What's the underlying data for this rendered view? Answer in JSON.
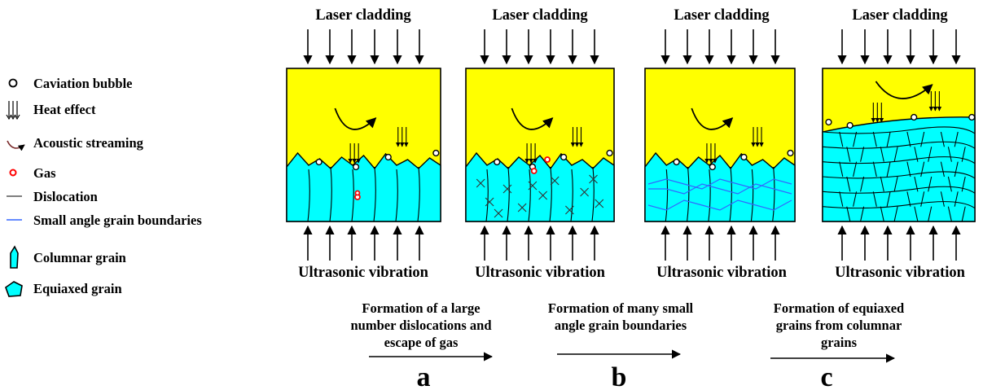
{
  "legend": [
    {
      "key": "bubble",
      "label": "Caviation bubble"
    },
    {
      "key": "heat",
      "label": "Heat effect"
    },
    {
      "key": "stream",
      "label": "Acoustic streaming"
    },
    {
      "key": "gas",
      "label": "Gas"
    },
    {
      "key": "dislocation",
      "label": "Dislocation"
    },
    {
      "key": "sagb",
      "label": "Small angle grain boundaries"
    },
    {
      "key": "columnar",
      "label": "Columnar grain"
    },
    {
      "key": "equiaxed",
      "label": "Equiaxed grain"
    }
  ],
  "panels": [
    {
      "top": "Laser cladding",
      "bottom": "Ultrasonic vibration"
    },
    {
      "top": "Laser cladding",
      "bottom": "Ultrasonic vibration"
    },
    {
      "top": "Laser cladding",
      "bottom": "Ultrasonic vibration"
    },
    {
      "top": "Laser cladding",
      "bottom": "Ultrasonic vibration"
    }
  ],
  "steps": [
    {
      "lines": [
        "Formation of a large",
        "number dislocations and",
        "escape of gas"
      ],
      "letter": "a"
    },
    {
      "lines": [
        "Formation of many small",
        "angle grain boundaries"
      ],
      "letter": "b"
    },
    {
      "lines": [
        "Formation of  equiaxed",
        "grains from columnar",
        "grains"
      ],
      "letter": "c"
    }
  ],
  "colors": {
    "melt_pool": "#ffff00",
    "grain": "#00ffff",
    "gas": "#ff0000",
    "sagb": "#3366ff"
  }
}
